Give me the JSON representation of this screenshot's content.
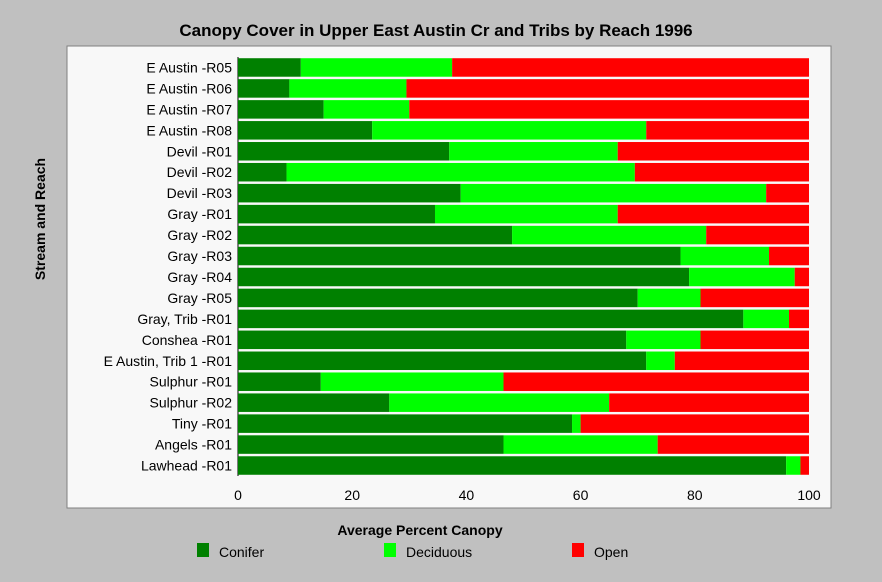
{
  "chart_data": {
    "type": "bar",
    "orientation": "horizontal",
    "stacked": true,
    "title": "Canopy Cover in Upper East Austin Cr and Tribs by Reach 1996",
    "xlabel": "Average Percent Canopy",
    "ylabel": "Stream and Reach",
    "xlim": [
      0,
      100
    ],
    "xticks": [
      "0",
      "20",
      "40",
      "60",
      "80",
      "100"
    ],
    "categories": [
      "E Austin -R05",
      "E Austin -R06",
      "E Austin -R07",
      "E Austin -R08",
      "Devil -R01",
      "Devil -R02",
      "Devil -R03",
      "Gray -R01",
      "Gray -R02",
      "Gray -R03",
      "Gray -R04",
      "Gray -R05",
      "Gray, Trib -R01",
      "Conshea -R01",
      "E Austin, Trib 1 -R01",
      "Sulphur -R01",
      "Sulphur -R02",
      "Tiny -R01",
      "Angels -R01",
      "Lawhead -R01"
    ],
    "series": [
      {
        "name": "Conifer",
        "color": "#008000",
        "values": [
          11,
          9,
          15,
          23.5,
          37,
          8.5,
          39,
          34.5,
          48,
          77.5,
          79,
          70,
          88.5,
          68,
          71.5,
          14.5,
          26.5,
          58.5,
          46.5,
          96
        ]
      },
      {
        "name": "Deciduous",
        "color": "#00ff00",
        "values": [
          26.5,
          20.5,
          15,
          48,
          29.5,
          61,
          53.5,
          32,
          34,
          15.5,
          18.5,
          11,
          8,
          13,
          5,
          32,
          38.5,
          1.5,
          27,
          2.5
        ]
      },
      {
        "name": "Open",
        "color": "#ff0000",
        "values": [
          62.5,
          70.5,
          70,
          28.5,
          33.5,
          30.5,
          7.5,
          33.5,
          18,
          7,
          2.5,
          19,
          3.5,
          19,
          23.5,
          53.5,
          35,
          40,
          26.5,
          1.5
        ]
      }
    ],
    "legend_position": "bottom",
    "grid": false
  }
}
